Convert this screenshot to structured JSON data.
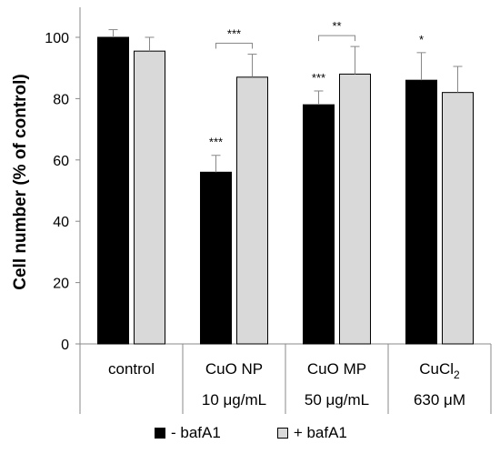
{
  "chart_data": {
    "type": "bar",
    "title": "",
    "ylabel": "Cell number (% of control)",
    "xlabel": "",
    "ylim": [
      0,
      110
    ],
    "yticks": [
      0,
      20,
      40,
      60,
      80,
      100
    ],
    "grid": false,
    "legend_position": "bottom",
    "categories": [
      {
        "line1": "control",
        "line2": ""
      },
      {
        "line1": "CuO NP",
        "line2": "10 μg/mL"
      },
      {
        "line1": "CuO MP",
        "line2": "50 μg/mL"
      },
      {
        "line1": "CuCl",
        "line1_sub": "2",
        "line2": "630 μM"
      }
    ],
    "series": [
      {
        "name": "- bafA1",
        "color": "#000000",
        "values": [
          100,
          56,
          78,
          86
        ],
        "errors": [
          2.5,
          5.5,
          4.5,
          9
        ]
      },
      {
        "name": "+ bafA1",
        "color": "#d9d9d9",
        "values": [
          95.5,
          87,
          88,
          82
        ],
        "errors": [
          4.5,
          7.5,
          9,
          8.5
        ]
      }
    ],
    "annotations": [
      {
        "category": 1,
        "series": 0,
        "text": "***"
      },
      {
        "category": 2,
        "series": 0,
        "text": "***"
      },
      {
        "category": 3,
        "series": 0,
        "text": "*"
      },
      {
        "category": 1,
        "bracket": true,
        "text": "***"
      },
      {
        "category": 2,
        "bracket": true,
        "text": "**"
      }
    ]
  }
}
